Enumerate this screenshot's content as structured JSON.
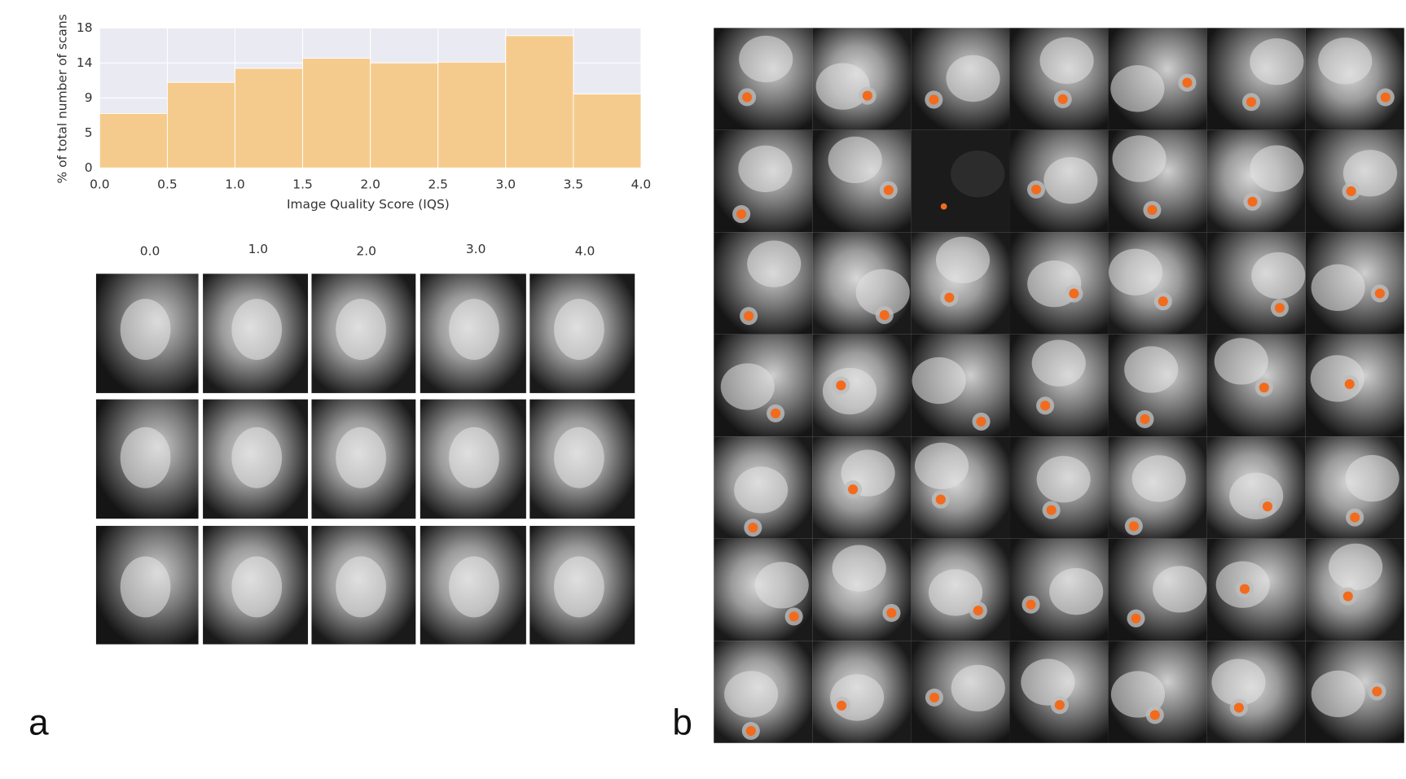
{
  "chart_data": {
    "type": "histogram",
    "xlabel": "Image Quality Score (IQS)",
    "ylabel": "% of total number of scans",
    "bins": [
      0,
      0.5,
      1,
      1.5,
      2,
      2.5,
      3,
      3.5,
      4
    ],
    "values": [
      7.0,
      11.0,
      12.8,
      14.1,
      13.5,
      13.6,
      17.0,
      9.5
    ],
    "color": "#f5c987",
    "background": "#eaeaf2",
    "grid": true,
    "xlim": [
      0,
      4
    ],
    "xticks": [
      {
        "value": 0,
        "label": "0.0"
      },
      {
        "value": 0.5,
        "label": "0.5"
      },
      {
        "value": 1,
        "label": "1.0"
      },
      {
        "value": 1.5,
        "label": "1.5"
      },
      {
        "value": 2,
        "label": "2.0"
      },
      {
        "value": 2.5,
        "label": "2.5"
      },
      {
        "value": 3,
        "label": "3.0"
      },
      {
        "value": 3.5,
        "label": "3.5"
      },
      {
        "value": 4,
        "label": "4.0"
      }
    ],
    "ylim": [
      0,
      18
    ],
    "yticks": [
      0,
      {
        "value": 4.5,
        "label": "5"
      },
      9,
      {
        "value": 13.5,
        "label": "14"
      },
      18
    ]
  },
  "panel_a": {
    "label": "a",
    "column_labels": [
      "0.0",
      "1.0",
      "2.0",
      "3.0",
      "4.0"
    ]
  },
  "panel_b": {
    "label": "b"
  }
}
